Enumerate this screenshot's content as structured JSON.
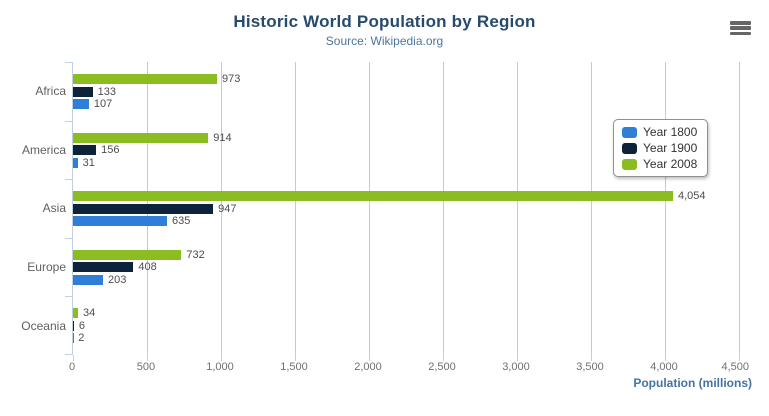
{
  "header": {
    "title": "Historic World Population by Region",
    "subtitle": "Source: Wikipedia.org"
  },
  "context_menu": {
    "icon": "hamburger-icon",
    "color": "#666666"
  },
  "chart_data": {
    "type": "bar",
    "orientation": "horizontal",
    "title": "Historic World Population by Region",
    "subtitle": "Source: Wikipedia.org",
    "categories": [
      "Africa",
      "America",
      "Asia",
      "Europe",
      "Oceania"
    ],
    "series": [
      {
        "name": "Year 1800",
        "color": "#2f7ed8",
        "values": [
          107,
          31,
          635,
          203,
          2
        ],
        "labels": [
          "107",
          "31",
          "635",
          "203",
          "2"
        ]
      },
      {
        "name": "Year 1900",
        "color": "#0d233a",
        "values": [
          133,
          156,
          947,
          408,
          6
        ],
        "labels": [
          "133",
          "156",
          "947",
          "408",
          "6"
        ]
      },
      {
        "name": "Year 2008",
        "color": "#8bbc21",
        "values": [
          973,
          914,
          4054,
          732,
          34
        ],
        "labels": [
          "973",
          "914",
          "4,054",
          "732",
          "34"
        ]
      }
    ],
    "display_order_top_to_bottom": [
      "Year 2008",
      "Year 1900",
      "Year 1800"
    ],
    "xlabel": "Population (millions)",
    "xlim": [
      0,
      4500
    ],
    "x_ticks": {
      "values": [
        0,
        500,
        1000,
        1500,
        2000,
        2500,
        3000,
        3500,
        4000,
        4500
      ],
      "labels": [
        "0",
        "500",
        "1,000",
        "1,500",
        "2,000",
        "2,500",
        "3,000",
        "3,500",
        "4,000",
        "4,500"
      ]
    },
    "grid": "vertical-on",
    "legend": {
      "position": "right-middle",
      "border_color": "#909090",
      "items": [
        "Year 1800",
        "Year 1900",
        "Year 2008"
      ]
    },
    "colors": {
      "title": "#274b6d",
      "subtitle": "#4d759e",
      "axis_title": "#4572a7",
      "axis_line": "#C0D0E0",
      "gridline": "#C9C9C9",
      "tick_label": "#707070",
      "category_label": "#606060",
      "data_label": "#4d4d4d"
    }
  }
}
